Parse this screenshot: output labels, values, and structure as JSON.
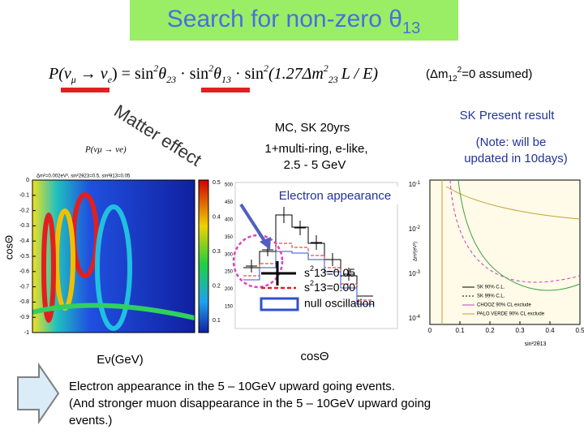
{
  "title": {
    "text": "Search for non-zero θ",
    "sub": "13"
  },
  "formula": [
    "P(ν",
    "μ",
    " → ν",
    "e",
    ") = sin",
    "2",
    "θ",
    "23",
    " · sin",
    "2",
    "θ",
    "13",
    " · sin",
    "2",
    "(1.27Δm",
    "2",
    "23",
    "L / E",
    ")"
  ],
  "assumption": [
    "(Δm",
    "12",
    "2",
    "=0 assumed)"
  ],
  "matter_effect": "Matter effect",
  "mc_label": [
    "MC, SK 20yrs",
    "1+multi-ring, e-like,",
    "2.5 - 5 GeV"
  ],
  "sk_result": "SK Present result",
  "note": [
    "(Note: will be",
    "updated in 10days)"
  ],
  "electron_appearance": "Electron appearance",
  "left_plot": {
    "inset": "P(νμ → νe)",
    "header": "Δm²=0.002eV², sin²2θ23=0.5, sin²θ13=0.05",
    "ylabel": "cosΘ",
    "xlabel": "Eν(GeV)",
    "yticks": [
      0,
      -0.1,
      -0.2,
      -0.3,
      -0.4,
      -0.5,
      -0.6,
      -0.7,
      -0.8,
      -0.9,
      -1
    ],
    "colorbar_ticks": [
      0.5,
      0.4,
      0.3,
      0.2,
      0.1
    ]
  },
  "middle_plot": {
    "xlabel": "cosΘ",
    "yticks": [
      500,
      450,
      400,
      350,
      300,
      250,
      200,
      150
    ],
    "legend": [
      [
        "s",
        "2",
        "13=0.05"
      ],
      [
        "s",
        "2",
        "13=0.00"
      ],
      [
        "null oscillation"
      ]
    ]
  },
  "right_plot": {
    "yticks": [
      [
        "10",
        "-1"
      ],
      [
        "10",
        "-2"
      ],
      [
        "10",
        "-3"
      ],
      [
        "10",
        "-4"
      ]
    ],
    "xticks": [
      0,
      0.1,
      0.2,
      0.3,
      0.4,
      0.5
    ],
    "ylabel": "Δm²(eV²)",
    "xlabel": "sin²2θ13",
    "legend": [
      "SK 90% C.L.",
      "SK 99% C.L.",
      "CHOOZ 90% CL exclude",
      "PALO VERDE 90% CL exclude"
    ]
  },
  "footer": [
    "Electron appearance in the 5 – 10GeV upward going events.",
    "(And stronger muon disappearance in the 5 – 10GeV upward going",
    "events.)"
  ]
}
